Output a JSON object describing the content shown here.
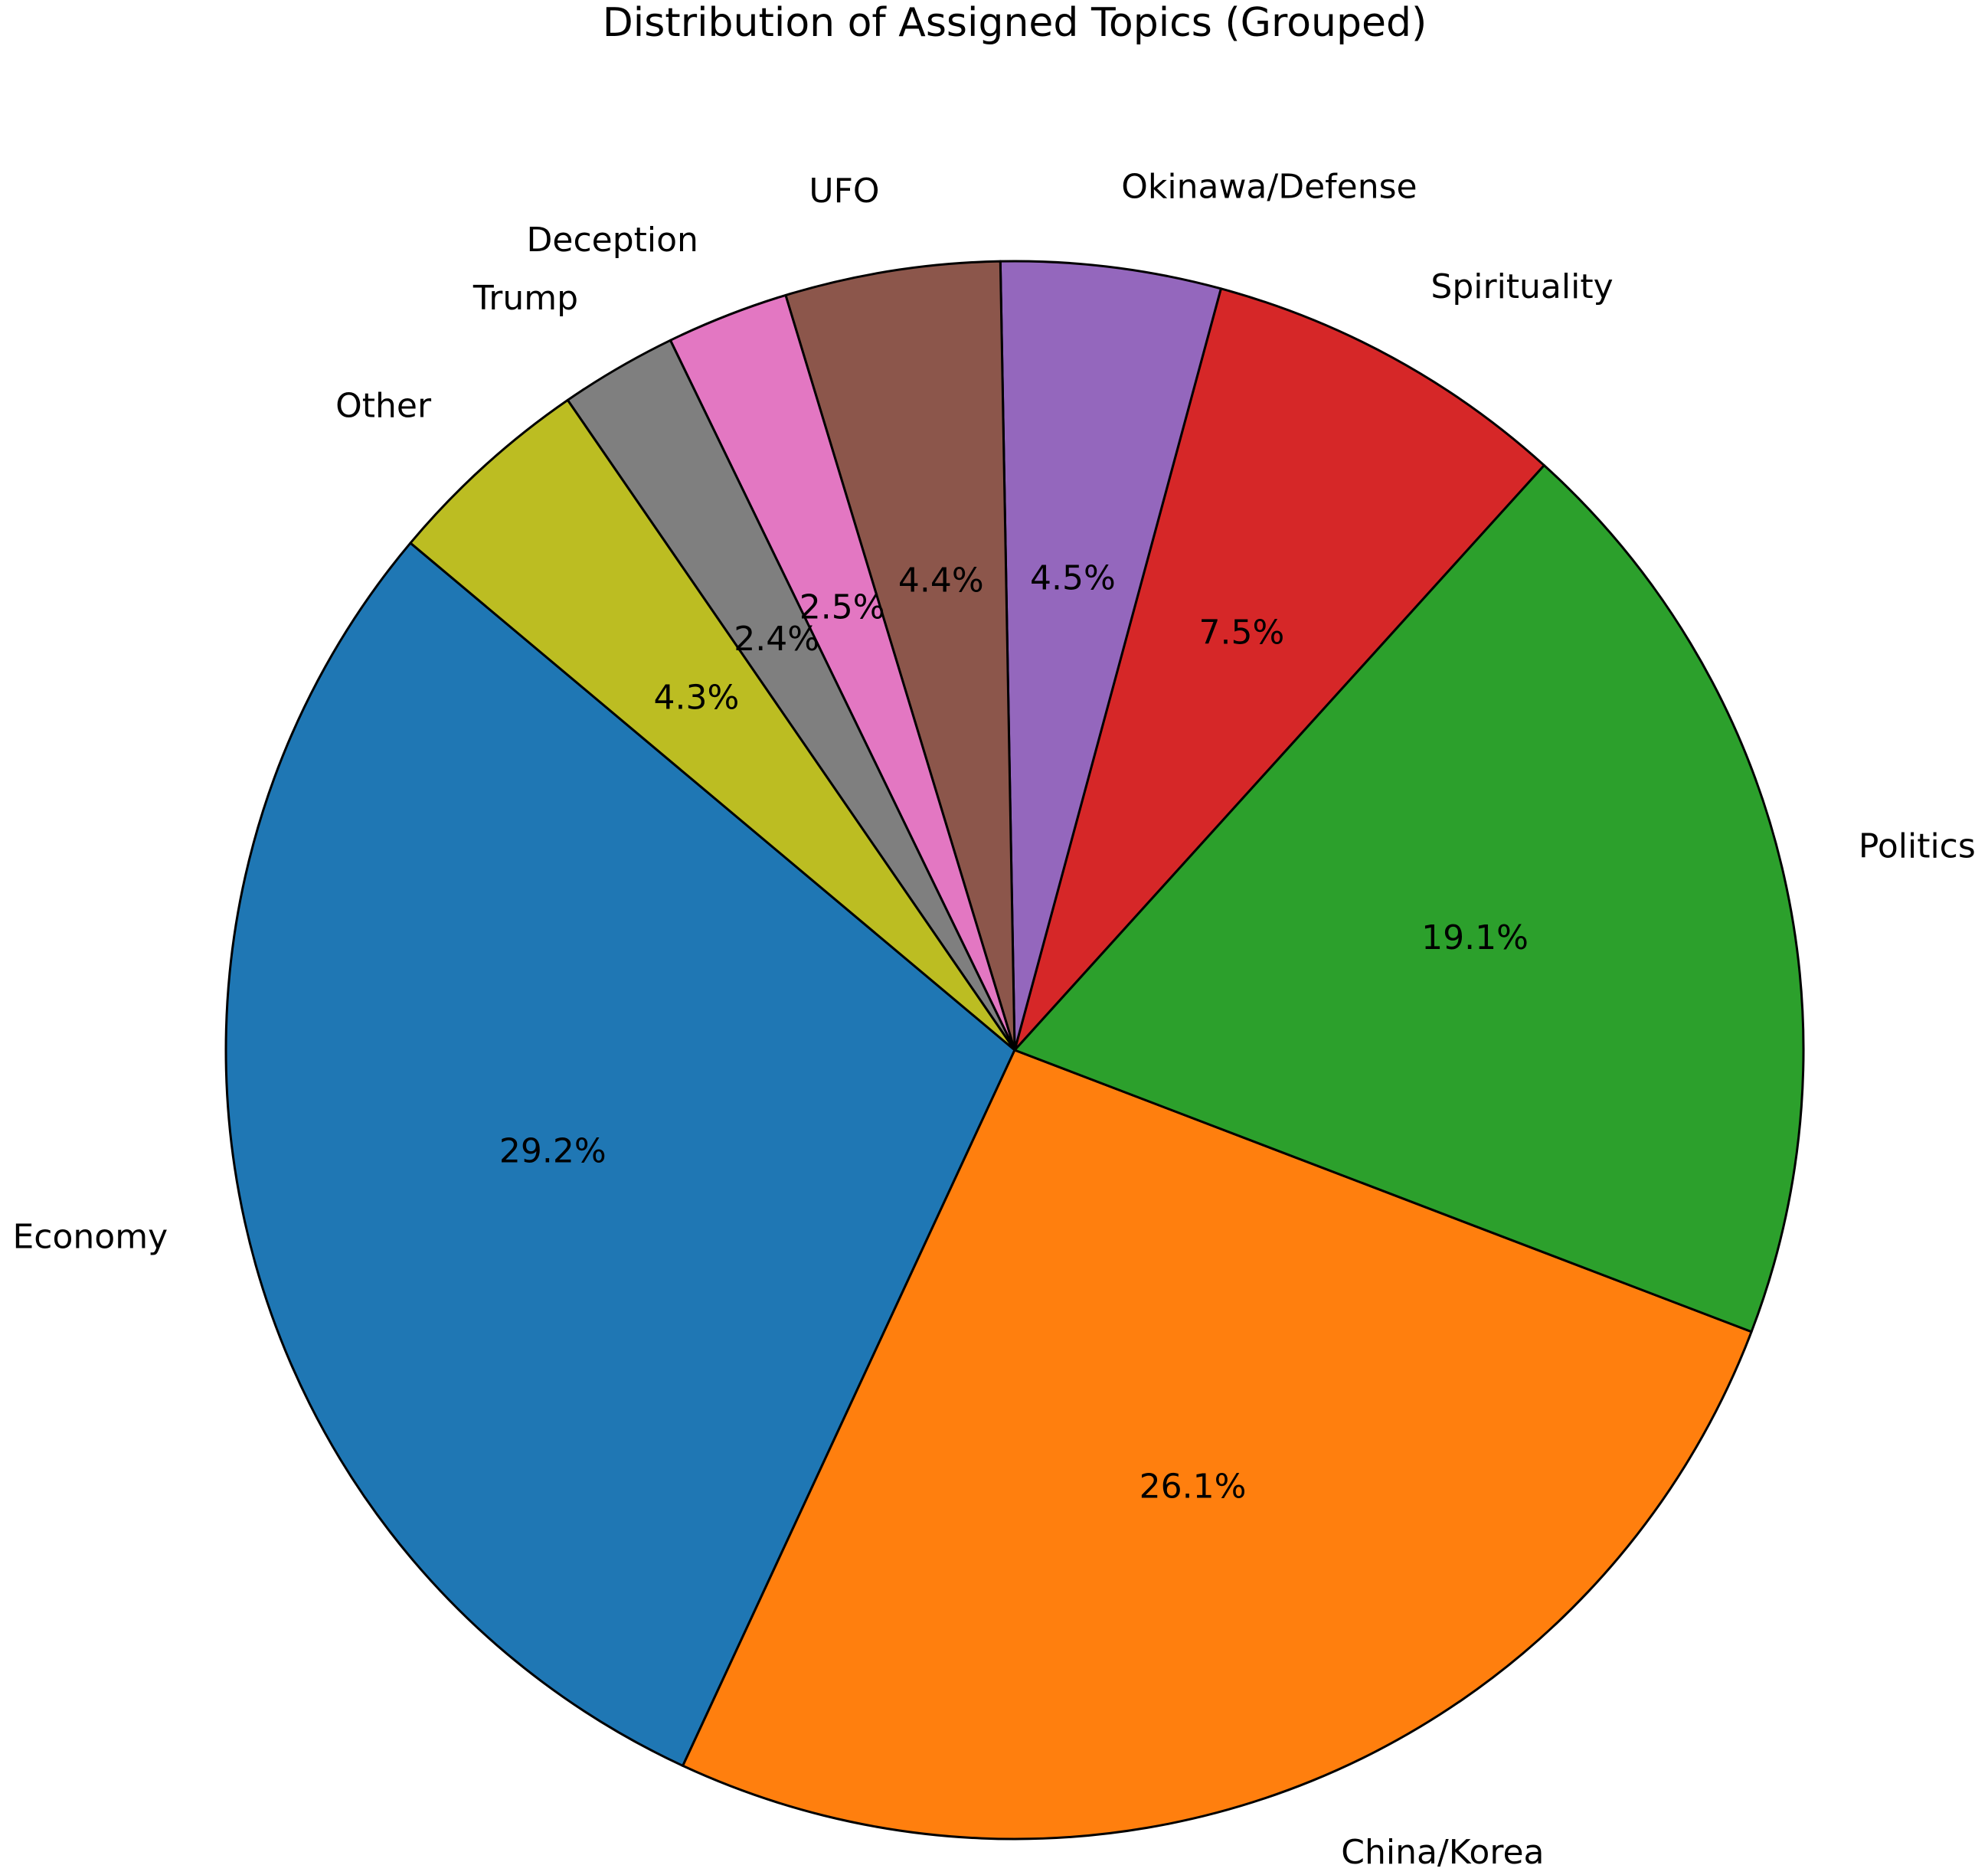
{
  "chart_data": {
    "type": "pie",
    "title": "Distribution of Assigned Topics (Grouped)",
    "categories": [
      "Economy",
      "China/Korea",
      "Politics",
      "Spirituality",
      "Okinawa/Defense",
      "UFO",
      "Deception",
      "Trump",
      "Other"
    ],
    "values": [
      29.2,
      26.1,
      19.1,
      7.5,
      4.5,
      4.4,
      2.5,
      2.4,
      4.3
    ],
    "value_labels": [
      "29.2%",
      "26.1%",
      "19.1%",
      "7.5%",
      "4.5%",
      "4.4%",
      "2.5%",
      "2.4%",
      "4.3%"
    ],
    "colors": [
      "#1f77b4",
      "#ff7f0e",
      "#2ca02c",
      "#d62728",
      "#9467bd",
      "#8c564b",
      "#e377c2",
      "#7f7f7f",
      "#bcbd22"
    ],
    "start_angle": 140
  }
}
